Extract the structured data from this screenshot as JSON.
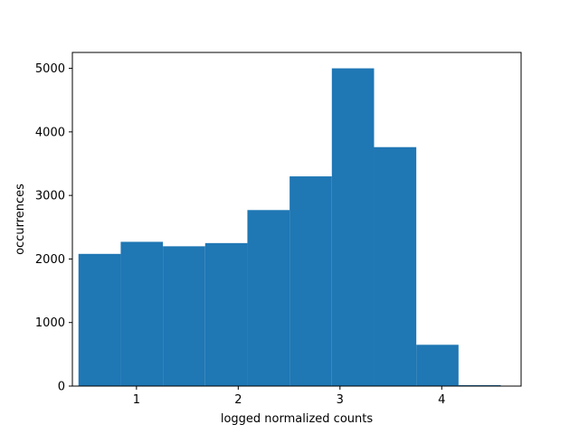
{
  "chart_data": {
    "type": "bar",
    "subtype": "histogram",
    "xlabel": "logged normalized counts",
    "ylabel": "occurrences",
    "xlim": [
      0.37,
      4.78
    ],
    "ylim": [
      0,
      5250
    ],
    "xticks": [
      1,
      2,
      3,
      4
    ],
    "xtick_labels": [
      "1",
      "2",
      "3",
      "4"
    ],
    "yticks": [
      0,
      1000,
      2000,
      3000,
      4000,
      5000
    ],
    "ytick_labels": [
      "0",
      "1000",
      "2000",
      "3000",
      "4000",
      "5000"
    ],
    "bin_edges": [
      0.43,
      0.845,
      1.26,
      1.675,
      2.09,
      2.505,
      2.92,
      3.335,
      3.75,
      4.165,
      4.58
    ],
    "values": [
      2080,
      2270,
      2200,
      2250,
      2770,
      3300,
      5000,
      3760,
      650,
      15
    ],
    "color": "#1f77b4",
    "grid": false
  }
}
